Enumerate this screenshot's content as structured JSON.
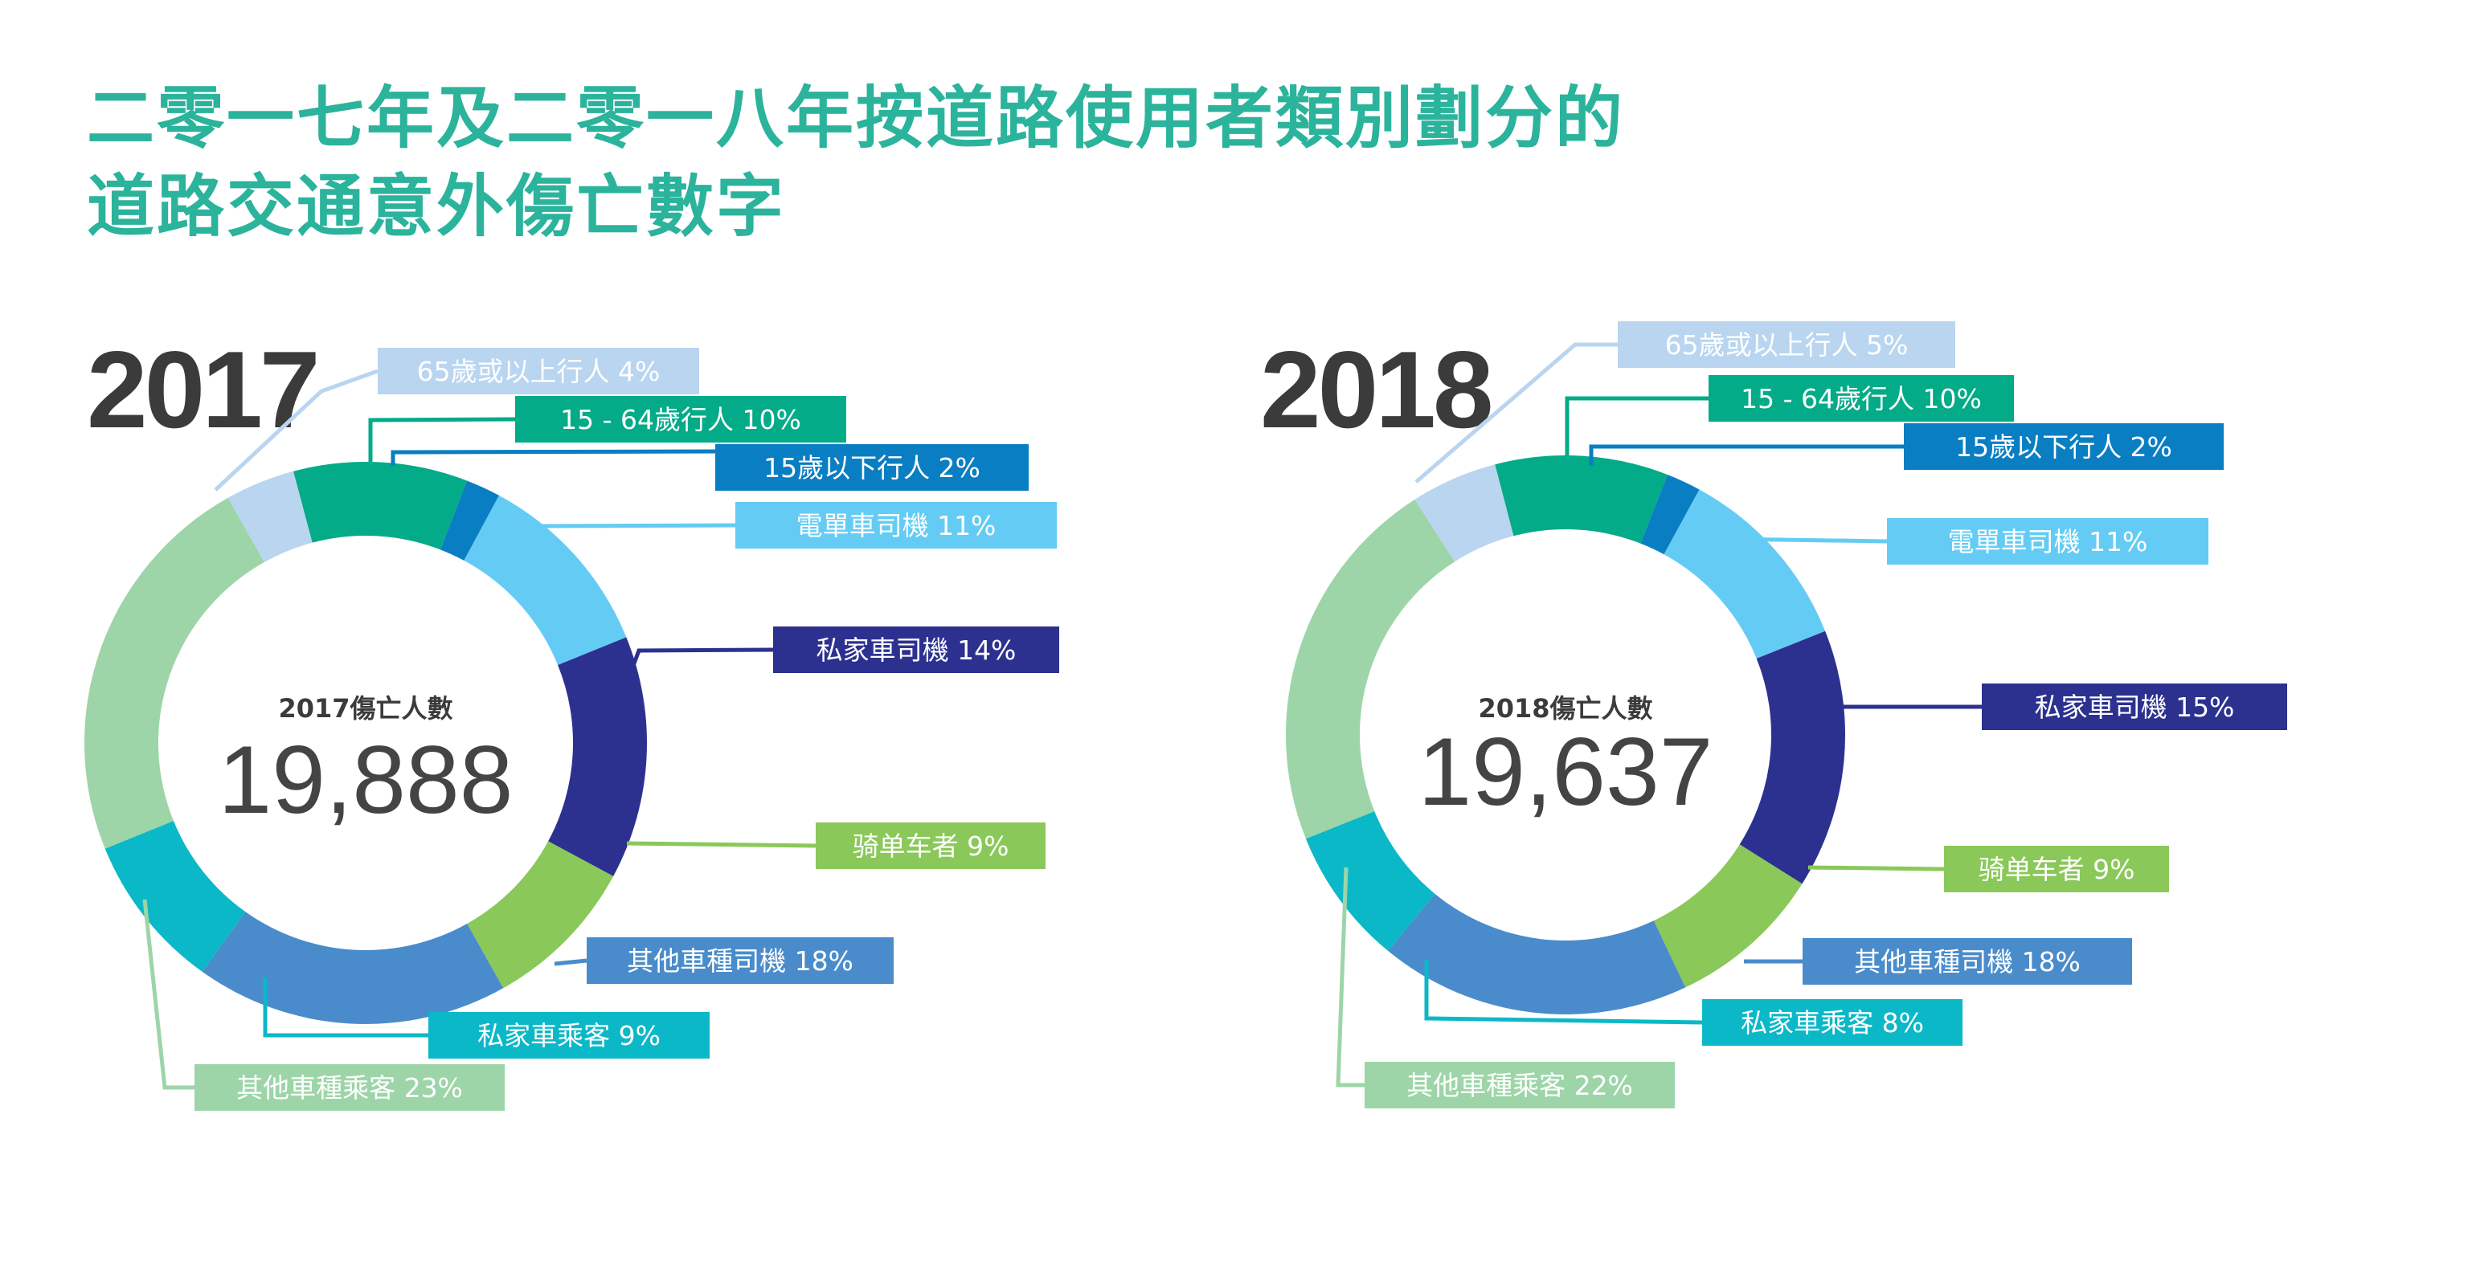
{
  "title": {
    "line1": "二零一七年及二零一八年按道路使用者類別劃分的",
    "line2": "道路交通意外傷亡數字"
  },
  "colors": {
    "title": "#2bb39c",
    "pedestrian_65_plus": "#b9d5f0",
    "pedestrian_15_64": "#04ab88",
    "pedestrian_under_15": "#0a7ec3",
    "motorcycle_driver": "#64ccf4",
    "private_car_driver": "#2c3190",
    "cyclist": "#8ac85a",
    "other_vehicle_driver": "#4a8ccb",
    "private_car_passenger": "#0bb8c7",
    "other_vehicle_passenger": "#9dd5a8"
  },
  "chart_data": [
    {
      "type": "pie",
      "year": "2017",
      "center_title": "2017傷亡人數",
      "total": "19,888",
      "slices": [
        {
          "key": "pedestrian_65_plus",
          "label": "65歲或以上行人 4%",
          "value": 4
        },
        {
          "key": "pedestrian_15_64",
          "label": "15 - 64歲行人 10%",
          "value": 10
        },
        {
          "key": "pedestrian_under_15",
          "label": "15歲以下行人 2%",
          "value": 2
        },
        {
          "key": "motorcycle_driver",
          "label": "電單車司機 11%",
          "value": 11
        },
        {
          "key": "private_car_driver",
          "label": "私家車司機 14%",
          "value": 14
        },
        {
          "key": "cyclist",
          "label": "骑单车者 9%",
          "value": 9
        },
        {
          "key": "other_vehicle_driver",
          "label": "其他車種司機 18%",
          "value": 18
        },
        {
          "key": "private_car_passenger",
          "label": "私家車乘客 9%",
          "value": 9
        },
        {
          "key": "other_vehicle_passenger",
          "label": "其他車種乘客 23%",
          "value": 23
        }
      ]
    },
    {
      "type": "pie",
      "year": "2018",
      "center_title": "2018傷亡人數",
      "total": "19,637",
      "slices": [
        {
          "key": "pedestrian_65_plus",
          "label": "65歲或以上行人 5%",
          "value": 5
        },
        {
          "key": "pedestrian_15_64",
          "label": "15 - 64歲行人 10%",
          "value": 10
        },
        {
          "key": "pedestrian_under_15",
          "label": "15歲以下行人 2%",
          "value": 2
        },
        {
          "key": "motorcycle_driver",
          "label": "電單車司機 11%",
          "value": 11
        },
        {
          "key": "private_car_driver",
          "label": "私家車司機 15%",
          "value": 15
        },
        {
          "key": "cyclist",
          "label": "骑单车者 9%",
          "value": 9
        },
        {
          "key": "other_vehicle_driver",
          "label": "其他車種司機 18%",
          "value": 18
        },
        {
          "key": "private_car_passenger",
          "label": "私家車乘客 8%",
          "value": 8
        },
        {
          "key": "other_vehicle_passenger",
          "label": "其他車種乘客 22%",
          "value": 22
        }
      ]
    }
  ]
}
